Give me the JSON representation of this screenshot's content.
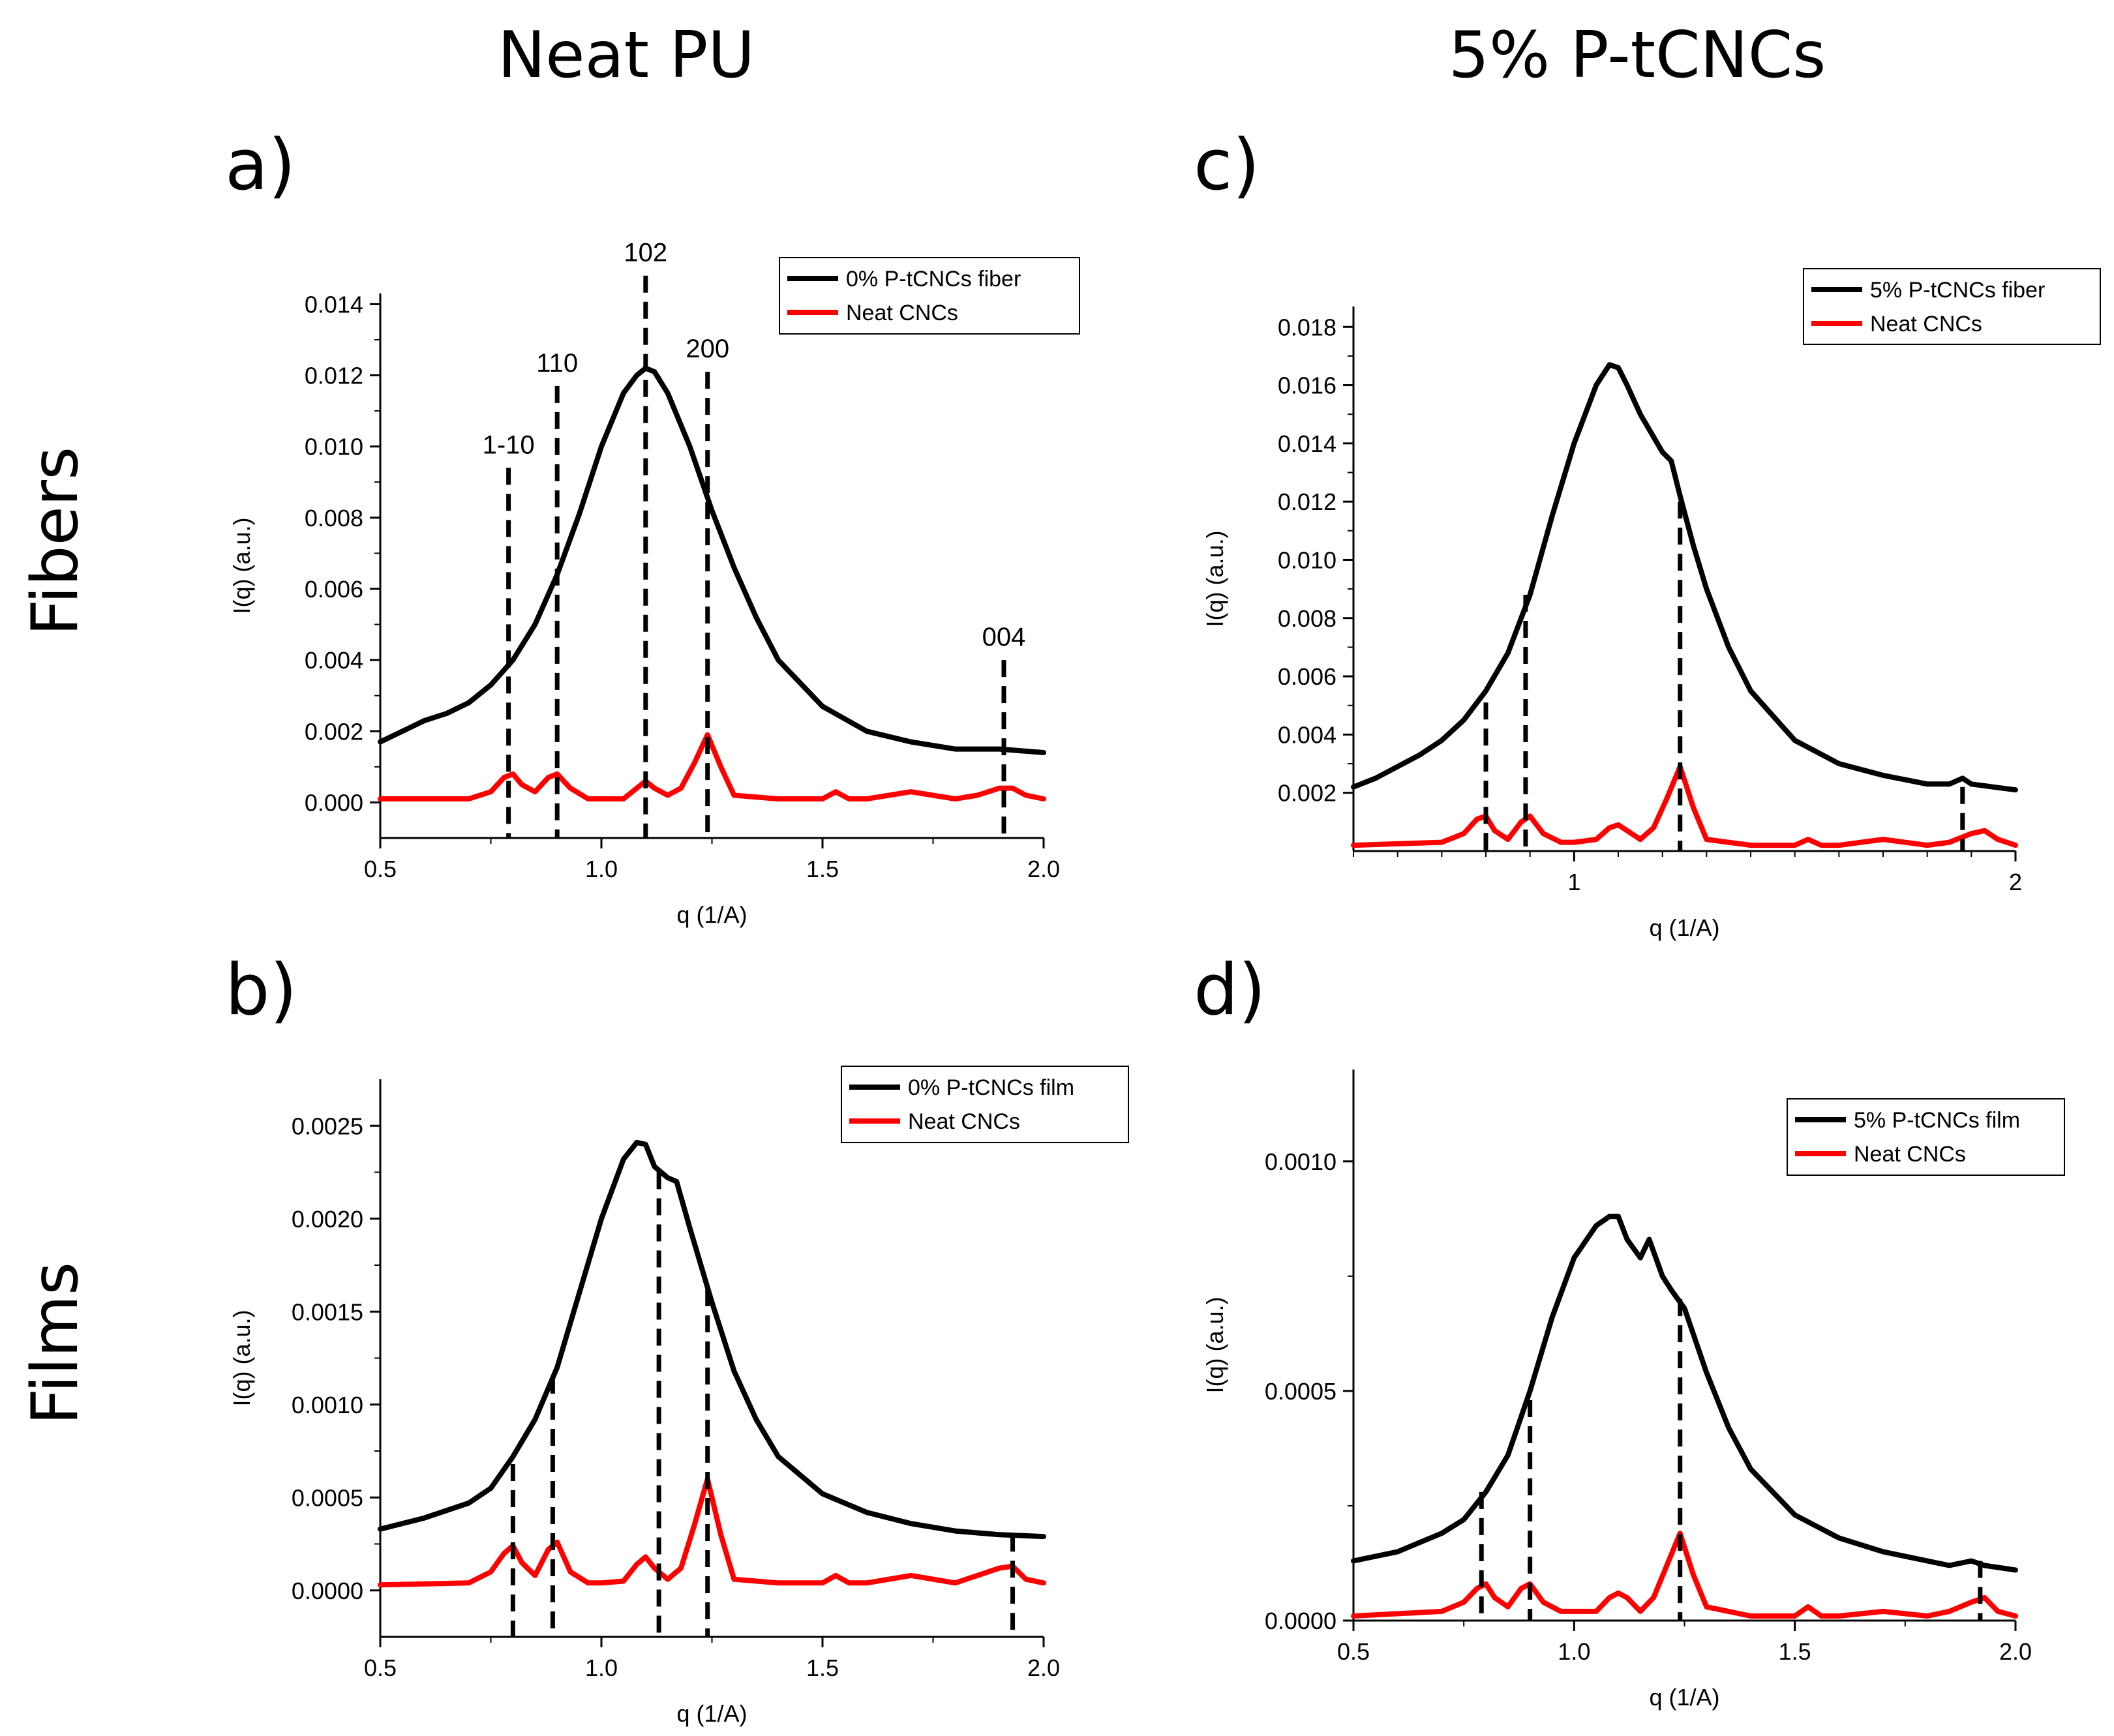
{
  "columns": [
    "Neat PU",
    "5% P-tCNCs"
  ],
  "rows": [
    "Fibers",
    "Films"
  ],
  "colors": {
    "sample": "#000000",
    "reference": "#ff0000",
    "marker": "#000000"
  },
  "chart_data": [
    {
      "panel": "a)",
      "type": "line",
      "xlabel": "q (1/A)",
      "ylabel": "I(q) (a.u.)",
      "xlim": [
        0.5,
        2.0
      ],
      "ylim": [
        -0.001,
        0.0143
      ],
      "xticks": [
        0.5,
        1.0,
        1.5,
        2.0
      ],
      "xtick_labels": [
        "0.5",
        "1.0",
        "1.5",
        "2.0"
      ],
      "yticks": [
        0.0,
        0.002,
        0.004,
        0.006,
        0.008,
        0.01,
        0.012,
        0.014
      ],
      "ytick_labels": [
        "0.000",
        "0.002",
        "0.004",
        "0.006",
        "0.008",
        "0.010",
        "0.012",
        "0.014"
      ],
      "series": [
        {
          "name": "0% P-tCNCs fiber",
          "color": "#000000",
          "x": [
            0.5,
            0.55,
            0.6,
            0.65,
            0.7,
            0.75,
            0.8,
            0.85,
            0.9,
            0.95,
            1.0,
            1.05,
            1.08,
            1.1,
            1.12,
            1.15,
            1.2,
            1.25,
            1.3,
            1.35,
            1.4,
            1.5,
            1.6,
            1.7,
            1.8,
            1.9,
            2.0
          ],
          "y": [
            0.0017,
            0.002,
            0.0023,
            0.0025,
            0.0028,
            0.0033,
            0.004,
            0.005,
            0.0064,
            0.0081,
            0.01,
            0.0115,
            0.012,
            0.0122,
            0.0121,
            0.0115,
            0.01,
            0.0082,
            0.0066,
            0.0052,
            0.004,
            0.0027,
            0.002,
            0.0017,
            0.0015,
            0.0015,
            0.0014
          ]
        },
        {
          "name": "Neat CNCs",
          "color": "#ff0000",
          "x": [
            0.5,
            0.7,
            0.75,
            0.78,
            0.8,
            0.82,
            0.85,
            0.88,
            0.9,
            0.93,
            0.97,
            1.0,
            1.05,
            1.08,
            1.1,
            1.12,
            1.15,
            1.18,
            1.21,
            1.24,
            1.27,
            1.3,
            1.4,
            1.5,
            1.53,
            1.56,
            1.6,
            1.7,
            1.8,
            1.85,
            1.9,
            1.93,
            1.96,
            2.0
          ],
          "y": [
            0.0001,
            0.0001,
            0.0003,
            0.0007,
            0.0008,
            0.0005,
            0.0003,
            0.0007,
            0.0008,
            0.0004,
            0.0001,
            0.0001,
            0.0001,
            0.0004,
            0.0006,
            0.0004,
            0.0002,
            0.0004,
            0.0011,
            0.0019,
            0.001,
            0.0002,
            0.0001,
            0.0001,
            0.0003,
            0.0001,
            0.0001,
            0.0003,
            0.0001,
            0.0002,
            0.0004,
            0.0004,
            0.0002,
            0.0001
          ]
        }
      ],
      "markers": [
        {
          "q": 0.79,
          "top": 0.0094,
          "label": "1-10"
        },
        {
          "q": 0.9,
          "top": 0.0117,
          "label": "110"
        },
        {
          "q": 1.1,
          "top": 0.0148,
          "label": "102"
        },
        {
          "q": 1.24,
          "top": 0.0121,
          "label": "200"
        },
        {
          "q": 1.91,
          "top": 0.004,
          "label": "004"
        }
      ],
      "legend": [
        "0% P-tCNCs fiber",
        "Neat CNCs"
      ]
    },
    {
      "panel": "b)",
      "type": "line",
      "xlabel": "q (1/A)",
      "ylabel": "I(q) (a.u.)",
      "xlim": [
        0.5,
        2.0
      ],
      "ylim": [
        -0.00025,
        0.00275
      ],
      "xticks": [
        0.5,
        1.0,
        1.5,
        2.0
      ],
      "xtick_labels": [
        "0.5",
        "1.0",
        "1.5",
        "2.0"
      ],
      "yticks": [
        0.0,
        0.0005,
        0.001,
        0.0015,
        0.002,
        0.0025
      ],
      "ytick_labels": [
        "0.0000",
        "0.0005",
        "0.0010",
        "0.0015",
        "0.0020",
        "0.0025"
      ],
      "series": [
        {
          "name": "0% P-tCNCs film",
          "color": "#000000",
          "x": [
            0.5,
            0.6,
            0.7,
            0.75,
            0.8,
            0.85,
            0.9,
            0.95,
            1.0,
            1.05,
            1.08,
            1.1,
            1.12,
            1.15,
            1.17,
            1.2,
            1.25,
            1.3,
            1.35,
            1.4,
            1.5,
            1.6,
            1.7,
            1.8,
            1.9,
            2.0
          ],
          "y": [
            0.00033,
            0.00039,
            0.00047,
            0.00055,
            0.00072,
            0.00092,
            0.0012,
            0.0016,
            0.002,
            0.00232,
            0.00241,
            0.0024,
            0.00228,
            0.00222,
            0.0022,
            0.00195,
            0.00155,
            0.00118,
            0.00092,
            0.00072,
            0.00052,
            0.00042,
            0.00036,
            0.00032,
            0.0003,
            0.00029
          ]
        },
        {
          "name": "Neat CNCs",
          "color": "#ff0000",
          "x": [
            0.5,
            0.7,
            0.75,
            0.78,
            0.8,
            0.82,
            0.85,
            0.88,
            0.9,
            0.93,
            0.97,
            1.0,
            1.05,
            1.08,
            1.1,
            1.12,
            1.15,
            1.18,
            1.21,
            1.24,
            1.27,
            1.3,
            1.4,
            1.5,
            1.53,
            1.56,
            1.6,
            1.7,
            1.8,
            1.85,
            1.9,
            1.93,
            1.96,
            2.0
          ],
          "y": [
            3e-05,
            4e-05,
            0.0001,
            0.0002,
            0.00024,
            0.00015,
            8e-05,
            0.00022,
            0.00026,
            0.0001,
            4e-05,
            4e-05,
            5e-05,
            0.00014,
            0.00018,
            0.00012,
            6e-05,
            0.00012,
            0.00035,
            0.0006,
            0.0003,
            6e-05,
            4e-05,
            4e-05,
            8e-05,
            4e-05,
            4e-05,
            8e-05,
            4e-05,
            8e-05,
            0.00012,
            0.00013,
            6e-05,
            4e-05
          ]
        }
      ],
      "markers": [
        {
          "q": 0.8,
          "top": 0.00068
        },
        {
          "q": 0.89,
          "top": 0.00115
        },
        {
          "q": 1.13,
          "top": 0.00225
        },
        {
          "q": 1.24,
          "top": 0.00162
        },
        {
          "q": 1.93,
          "top": 0.0003
        }
      ],
      "legend": [
        "0% P-tCNCs film",
        "Neat CNCs"
      ]
    },
    {
      "panel": "c)",
      "type": "line",
      "xlabel": "q (1/A)",
      "ylabel": "I(q) (a.u.)",
      "xlim": [
        0.5,
        2.0
      ],
      "ylim": [
        0.0,
        0.0187
      ],
      "xticks": [
        1.0,
        2.0
      ],
      "xtick_labels": [
        "1",
        "2"
      ],
      "yticks": [
        0.002,
        0.004,
        0.006,
        0.008,
        0.01,
        0.012,
        0.014,
        0.016,
        0.018
      ],
      "ytick_labels": [
        "0.002",
        "0.004",
        "0.006",
        "0.008",
        "0.010",
        "0.012",
        "0.014",
        "0.016",
        "0.018"
      ],
      "series": [
        {
          "name": "5% P-tCNCs fiber",
          "color": "#000000",
          "x": [
            0.5,
            0.55,
            0.6,
            0.65,
            0.7,
            0.75,
            0.8,
            0.85,
            0.9,
            0.95,
            1.0,
            1.05,
            1.08,
            1.1,
            1.12,
            1.15,
            1.2,
            1.22,
            1.24,
            1.27,
            1.3,
            1.35,
            1.4,
            1.5,
            1.6,
            1.7,
            1.8,
            1.85,
            1.88,
            1.9,
            1.95,
            2.0
          ],
          "y": [
            0.0022,
            0.0025,
            0.0029,
            0.0033,
            0.0038,
            0.0045,
            0.0055,
            0.0068,
            0.0088,
            0.0115,
            0.014,
            0.016,
            0.0167,
            0.0166,
            0.016,
            0.015,
            0.0137,
            0.0134,
            0.0122,
            0.0105,
            0.009,
            0.007,
            0.0055,
            0.0038,
            0.003,
            0.0026,
            0.0023,
            0.0023,
            0.0025,
            0.0023,
            0.0022,
            0.0021
          ]
        },
        {
          "name": "Neat CNCs",
          "color": "#ff0000",
          "x": [
            0.5,
            0.7,
            0.75,
            0.78,
            0.8,
            0.82,
            0.85,
            0.88,
            0.9,
            0.93,
            0.97,
            1.0,
            1.05,
            1.08,
            1.1,
            1.12,
            1.15,
            1.18,
            1.21,
            1.24,
            1.27,
            1.3,
            1.4,
            1.5,
            1.53,
            1.56,
            1.6,
            1.7,
            1.8,
            1.85,
            1.9,
            1.93,
            1.96,
            2.0
          ],
          "y": [
            0.0002,
            0.0003,
            0.0006,
            0.0011,
            0.0012,
            0.0007,
            0.0004,
            0.001,
            0.0012,
            0.0006,
            0.0003,
            0.0003,
            0.0004,
            0.0008,
            0.0009,
            0.0007,
            0.0004,
            0.0008,
            0.0018,
            0.0029,
            0.0015,
            0.0004,
            0.0002,
            0.0002,
            0.0004,
            0.0002,
            0.0002,
            0.0004,
            0.0002,
            0.0003,
            0.0006,
            0.0007,
            0.0004,
            0.0002
          ]
        }
      ],
      "markers": [
        {
          "q": 0.8,
          "top": 0.0051
        },
        {
          "q": 0.89,
          "top": 0.0088
        },
        {
          "q": 1.24,
          "top": 0.012
        },
        {
          "q": 1.88,
          "top": 0.0022
        }
      ],
      "legend": [
        "5% P-tCNCs fiber",
        "Neat CNCs"
      ]
    },
    {
      "panel": "d)",
      "type": "line",
      "xlabel": "q (1/A)",
      "ylabel": "I(q) (a.u.)",
      "xlim": [
        0.5,
        2.0
      ],
      "ylim": [
        0.0,
        0.0012
      ],
      "xticks": [
        0.5,
        1.0,
        1.5,
        2.0
      ],
      "xtick_labels": [
        "0.5",
        "1.0",
        "1.5",
        "2.0"
      ],
      "yticks": [
        0.0,
        0.0005,
        0.001
      ],
      "ytick_labels": [
        "0.0000",
        "0.0005",
        "0.0010"
      ],
      "series": [
        {
          "name": "5% P-tCNCs film",
          "color": "#000000",
          "x": [
            0.5,
            0.6,
            0.7,
            0.75,
            0.8,
            0.85,
            0.9,
            0.95,
            1.0,
            1.05,
            1.08,
            1.1,
            1.12,
            1.15,
            1.17,
            1.2,
            1.22,
            1.25,
            1.3,
            1.35,
            1.4,
            1.5,
            1.6,
            1.7,
            1.8,
            1.85,
            1.9,
            1.93,
            2.0
          ],
          "y": [
            0.00013,
            0.00015,
            0.00019,
            0.00022,
            0.00028,
            0.00036,
            0.0005,
            0.00066,
            0.00079,
            0.00086,
            0.00088,
            0.00088,
            0.00083,
            0.00079,
            0.00083,
            0.00075,
            0.00072,
            0.00068,
            0.00054,
            0.00042,
            0.00033,
            0.00023,
            0.00018,
            0.00015,
            0.00013,
            0.00012,
            0.00013,
            0.00012,
            0.00011
          ]
        },
        {
          "name": "Neat CNCs",
          "color": "#ff0000",
          "x": [
            0.5,
            0.7,
            0.75,
            0.78,
            0.8,
            0.82,
            0.85,
            0.88,
            0.9,
            0.93,
            0.97,
            1.0,
            1.05,
            1.08,
            1.1,
            1.12,
            1.15,
            1.18,
            1.21,
            1.24,
            1.27,
            1.3,
            1.4,
            1.5,
            1.53,
            1.56,
            1.6,
            1.7,
            1.8,
            1.85,
            1.9,
            1.93,
            1.96,
            2.0
          ],
          "y": [
            1e-05,
            2e-05,
            4e-05,
            7e-05,
            8e-05,
            5e-05,
            3e-05,
            7e-05,
            8e-05,
            4e-05,
            2e-05,
            2e-05,
            2e-05,
            5e-05,
            6e-05,
            5e-05,
            2e-05,
            5e-05,
            0.00012,
            0.00019,
            0.0001,
            3e-05,
            1e-05,
            1e-05,
            3e-05,
            1e-05,
            1e-05,
            2e-05,
            1e-05,
            2e-05,
            4e-05,
            5e-05,
            2e-05,
            1e-05
          ]
        }
      ],
      "markers": [
        {
          "q": 0.79,
          "top": 0.00028
        },
        {
          "q": 0.9,
          "top": 0.00048
        },
        {
          "q": 1.24,
          "top": 0.0007
        },
        {
          "q": 1.92,
          "top": 0.00013
        }
      ],
      "legend": [
        "5% P-tCNCs film",
        "Neat CNCs"
      ]
    }
  ]
}
